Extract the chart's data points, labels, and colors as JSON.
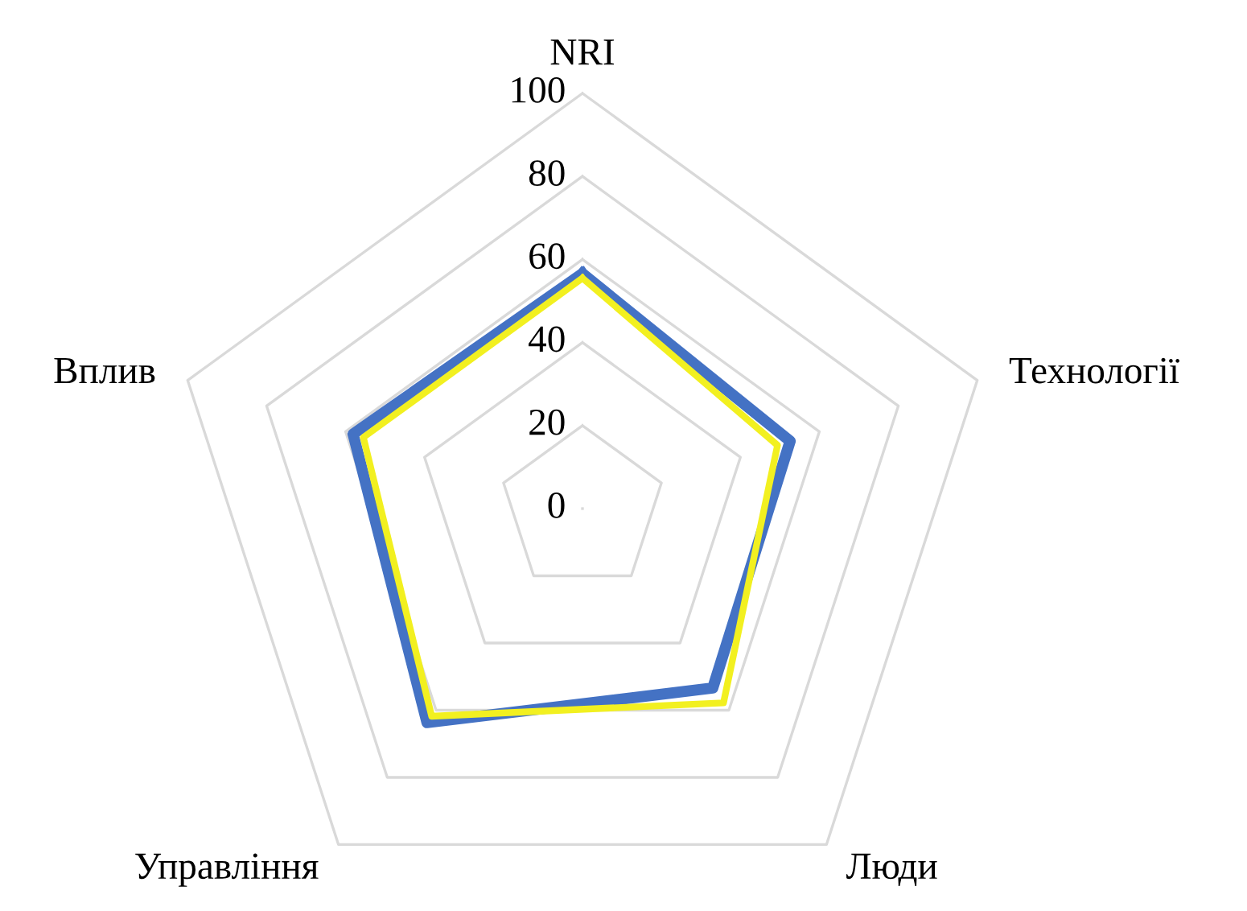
{
  "chart_data": {
    "type": "radar",
    "categories": [
      "NRI",
      "Технології",
      "Люди",
      "Управління",
      "Вплив"
    ],
    "ylim": [
      0,
      100
    ],
    "yticks": [
      0,
      20,
      40,
      60,
      80,
      100
    ],
    "grid": true,
    "legend": false,
    "series": [
      {
        "color": "#4472c4",
        "values": [
          56.6,
          52.6,
          53.4,
          63.7,
          58.1
        ]
      },
      {
        "color": "#f2f020",
        "values": [
          55.5,
          49.4,
          57.8,
          61.8,
          55.5
        ]
      }
    ]
  }
}
